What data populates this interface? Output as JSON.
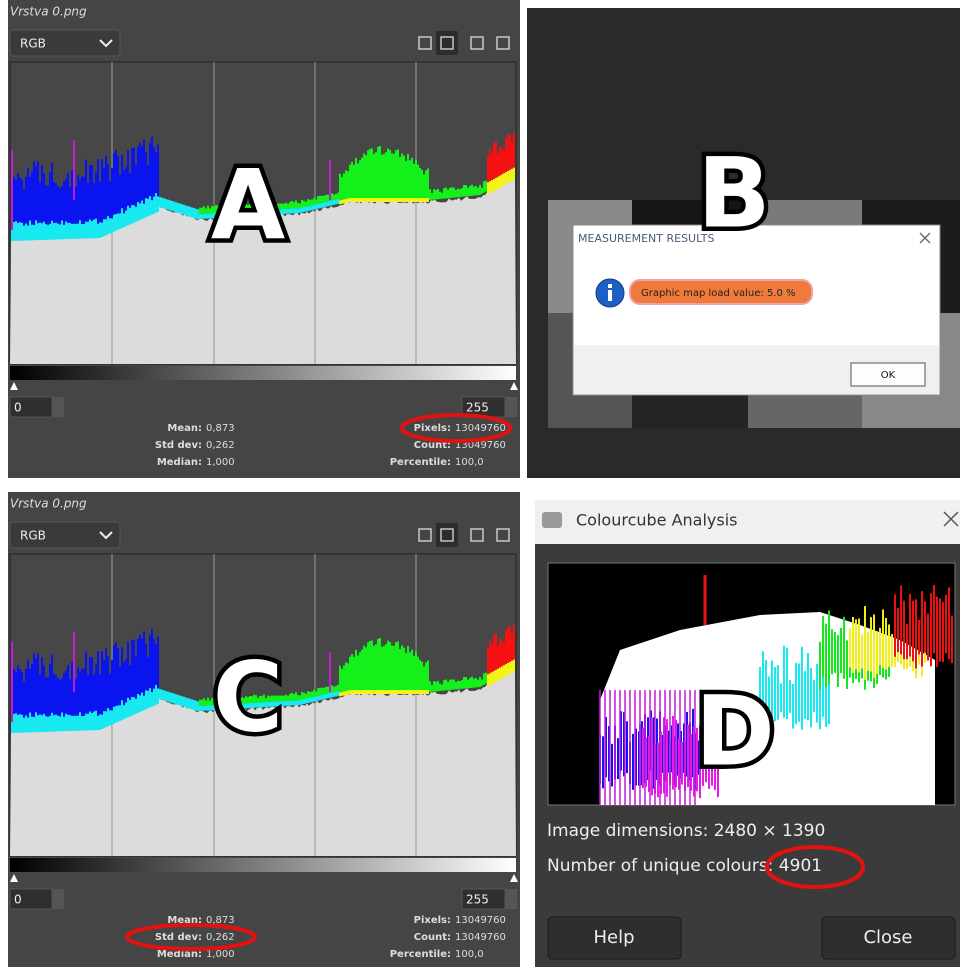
{
  "panels": {
    "a": {
      "label": "A",
      "layer": "Vrstva 0.png",
      "channel": "RGB",
      "range_low": "0",
      "range_high": "255",
      "stats_left": [
        [
          "Mean:",
          "0,873"
        ],
        [
          "Std dev:",
          "0,262"
        ],
        [
          "Median:",
          "1,000"
        ]
      ],
      "stats_right": [
        [
          "Pixels:",
          "13049760"
        ],
        [
          "Count:",
          "13049760"
        ],
        [
          "Percentile:",
          "100,0"
        ]
      ]
    },
    "b": {
      "label": "B",
      "dialog_title": "MEASUREMENT RESULTS",
      "message": "Graphic map load value: 5.0 %",
      "button": "OK"
    },
    "c": {
      "label": "C",
      "layer": "Vrstva 0.png",
      "channel": "RGB",
      "range_low": "0",
      "range_high": "255",
      "stats_left": [
        [
          "Mean:",
          "0,873"
        ],
        [
          "Std dev:",
          "0,262"
        ],
        [
          "Median:",
          "1,000"
        ]
      ],
      "stats_right": [
        [
          "Pixels:",
          "13049760"
        ],
        [
          "Count:",
          "13049760"
        ],
        [
          "Percentile:",
          "100,0"
        ]
      ]
    },
    "d": {
      "label": "D",
      "window_title": "Colourcube Analysis",
      "dimensions": "Image dimensions: 2480 × 1390",
      "unique_colours": "Number of unique colours: 4901",
      "help_button": "Help",
      "close_button": "Close"
    }
  }
}
